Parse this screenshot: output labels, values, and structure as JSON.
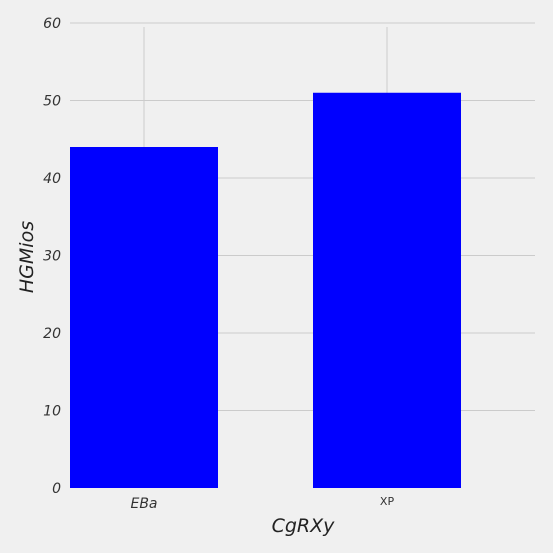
{
  "chart_data": {
    "type": "bar",
    "categories": [
      "EBa",
      "XP"
    ],
    "values": [
      44,
      51
    ],
    "xlabel": "CgRXy",
    "ylabel": "HGMios",
    "ylim": [
      0,
      60
    ],
    "yticks": [
      0,
      10,
      20,
      30,
      40,
      50,
      60
    ],
    "grid": true,
    "colors": {
      "bar": "#0000ff",
      "background": "#f0f0f0",
      "grid": "#cbcbcb"
    }
  }
}
